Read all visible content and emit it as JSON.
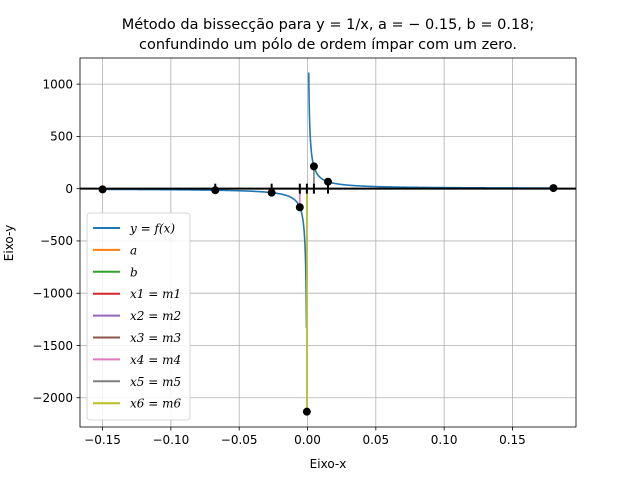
{
  "chart_data": {
    "type": "line",
    "title_lines": [
      "Método da bissecção para y = 1/x,  a = − 0.15,  b = 0.18;",
      "confundindo um pólo de ordem ímpar com um zero."
    ],
    "xlabel": "Eixo-x",
    "ylabel": "Eixo-y",
    "xlim": [
      -0.1665,
      0.1965
    ],
    "ylim": [
      -2280,
      1250
    ],
    "xticks": [
      -0.15,
      -0.1,
      -0.05,
      0.0,
      0.05,
      0.1,
      0.15
    ],
    "xtick_labels": [
      "−0.15",
      "−0.10",
      "−0.05",
      "0.00",
      "0.05",
      "0.10",
      "0.15"
    ],
    "yticks": [
      -2000,
      -1500,
      -1000,
      -500,
      0,
      500,
      1000
    ],
    "ytick_labels": [
      "−2000",
      "−1500",
      "−1000",
      "−500",
      "0",
      "500",
      "1000"
    ],
    "grid": true,
    "legend_position": "lower-left",
    "function_colors": {
      "f": "#1f77b4",
      "a": "#ff7f0e",
      "b": "#2ca02c",
      "m1": "#d62728",
      "m2": "#9467bd",
      "m3": "#8c564b",
      "m4": "#e377c2",
      "m5": "#7f7f7f",
      "m6": "#bcbd22"
    },
    "legend": [
      {
        "label": "y = f(x)",
        "color": "#1f77b4"
      },
      {
        "label": "a",
        "color": "#ff7f0e"
      },
      {
        "label": "b",
        "color": "#2ca02c"
      },
      {
        "label": "x1 = m1",
        "color": "#d62728"
      },
      {
        "label": "x2 = m2",
        "color": "#9467bd"
      },
      {
        "label": "x3 = m3",
        "color": "#8c564b"
      },
      {
        "label": "x4 = m4",
        "color": "#e377c2"
      },
      {
        "label": "x5 = m5",
        "color": "#7f7f7f"
      },
      {
        "label": "x6 = m6",
        "color": "#bcbd22"
      }
    ],
    "points": [
      {
        "x": -0.15,
        "y": -6.67
      },
      {
        "x": 0.18,
        "y": 5.56
      },
      {
        "x": 0.015,
        "y": 66.67
      },
      {
        "x": -0.0675,
        "y": -14.81
      },
      {
        "x": -0.02625,
        "y": -38.1
      },
      {
        "x": -0.005625,
        "y": -177.8
      },
      {
        "x": 0.0046875,
        "y": 213.3
      },
      {
        "x": -0.00046875,
        "y": -2133.3
      }
    ],
    "segments": [
      {
        "x": -0.15,
        "y0": 0,
        "y1": -6.67,
        "color": "#ff7f0e"
      },
      {
        "x": 0.18,
        "y0": 0,
        "y1": 5.56,
        "color": "#2ca02c"
      },
      {
        "x": 0.015,
        "y0": 0,
        "y1": 66.67,
        "color": "#d62728"
      },
      {
        "x": -0.0675,
        "y0": 0,
        "y1": -14.81,
        "color": "#9467bd"
      },
      {
        "x": -0.02625,
        "y0": 0,
        "y1": -38.1,
        "color": "#8c564b"
      },
      {
        "x": -0.005625,
        "y0": 0,
        "y1": -177.8,
        "color": "#e377c2"
      },
      {
        "x": 0.0046875,
        "y0": 0,
        "y1": 213.3,
        "color": "#7f7f7f"
      },
      {
        "x": -0.00046875,
        "y0": 0,
        "y1": -2133.3,
        "color": "#bcbd22"
      }
    ],
    "axis_tick_marks_x": [
      -0.0675,
      -0.02625,
      -0.005625,
      -0.00046875,
      0.0046875,
      0.015
    ]
  }
}
